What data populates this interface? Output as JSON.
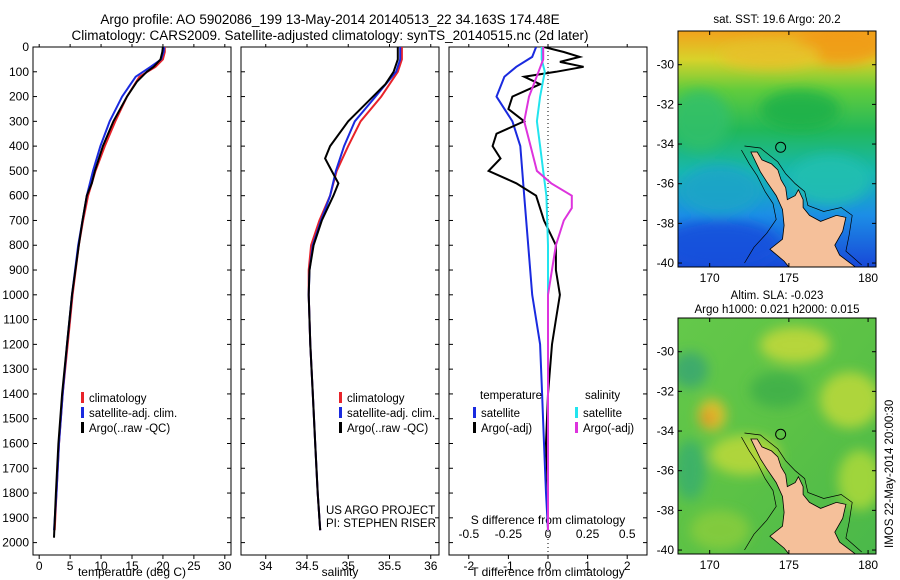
{
  "header": {
    "title_line1": "Argo profile: AO 5902086_199 13-May-2014 20140513_22 34.163S 174.48E",
    "title_line2": "Climatology: CARS2009. Satellite-adjusted climatology: synTS_20140515.nc (2d later)"
  },
  "colors": {
    "climatology": "#e8232a",
    "satellite": "#1a2adf",
    "argo": "#000000",
    "satellite_s": "#22e4ee",
    "argo_s": "#dd33dd"
  },
  "chart_data": [
    {
      "type": "line",
      "name": "temperature",
      "xlabel": "temperature (deg C)",
      "xlim": [
        -1,
        31
      ],
      "xticks": [
        "0",
        "5",
        "10",
        "15",
        "20",
        "25",
        "30"
      ],
      "ylim": [
        0,
        2050
      ],
      "yticks": [
        "0",
        "100",
        "200",
        "300",
        "400",
        "500",
        "600",
        "700",
        "800",
        "900",
        "1000",
        "1100",
        "1200",
        "1300",
        "1400",
        "1500",
        "1600",
        "1700",
        "1800",
        "1900",
        "2000"
      ],
      "legend": [
        "climatology",
        "satellite-adj. clim.",
        "Argo(..raw -QC)"
      ],
      "series": [
        {
          "name": "climatology",
          "color": "climatology",
          "depth": [
            0,
            20,
            50,
            80,
            120,
            200,
            300,
            400,
            500,
            600,
            700,
            800,
            900,
            1000,
            1200,
            1400,
            1600,
            1800,
            1950
          ],
          "values": [
            20.3,
            20.3,
            20.0,
            18.8,
            16.2,
            14.2,
            12.3,
            10.6,
            9.1,
            7.9,
            7.1,
            6.4,
            5.9,
            5.4,
            4.6,
            3.8,
            3.2,
            2.8,
            2.5
          ]
        },
        {
          "name": "satellite-adj. clim.",
          "color": "satellite",
          "depth": [
            0,
            20,
            50,
            80,
            120,
            200,
            300,
            400,
            500,
            600,
            700,
            800,
            900,
            1000,
            1200,
            1400,
            1600,
            1800,
            1950
          ],
          "values": [
            20.2,
            20.1,
            19.7,
            18.0,
            15.6,
            13.4,
            11.4,
            9.9,
            8.7,
            7.7,
            7.0,
            6.3,
            5.8,
            5.3,
            4.5,
            3.8,
            3.2,
            2.8,
            2.4
          ]
        },
        {
          "name": "Argo(..raw -QC)",
          "color": "argo",
          "depth": [
            0,
            20,
            50,
            80,
            100,
            140,
            200,
            300,
            400,
            500,
            550,
            600,
            700,
            800,
            1000,
            1200,
            1400,
            1600,
            1800,
            1980
          ],
          "values": [
            20.0,
            19.9,
            19.6,
            18.5,
            17.4,
            15.8,
            14.2,
            12.0,
            10.3,
            9.0,
            8.5,
            7.7,
            7.0,
            6.4,
            5.3,
            4.5,
            3.7,
            3.1,
            2.7,
            2.4
          ]
        }
      ]
    },
    {
      "type": "line",
      "name": "salinity",
      "xlabel": "salinity",
      "xlim": [
        33.7,
        36.1
      ],
      "xticks": [
        "34",
        "34.5",
        "35",
        "35.5",
        "36"
      ],
      "ylim": [
        0,
        2050
      ],
      "legend": [
        "climatology",
        "satellite-adj. clim.",
        "Argo(..raw -QC)"
      ],
      "annotation_lines": [
        "US ARGO PROJECT",
        "PI: STEPHEN RISER"
      ],
      "series": [
        {
          "name": "climatology",
          "color": "climatology",
          "depth": [
            0,
            50,
            100,
            200,
            300,
            400,
            500,
            600,
            700,
            800,
            900,
            1000,
            1200,
            1400,
            1600,
            1800,
            1950
          ],
          "values": [
            35.65,
            35.65,
            35.6,
            35.4,
            35.15,
            35.0,
            34.86,
            34.78,
            34.65,
            34.55,
            34.52,
            34.52,
            34.54,
            34.57,
            34.6,
            34.63,
            34.66
          ]
        },
        {
          "name": "satellite-adj. clim.",
          "color": "satellite",
          "depth": [
            0,
            50,
            100,
            200,
            300,
            400,
            500,
            600,
            700,
            800,
            900,
            1000,
            1200,
            1400,
            1600,
            1800,
            1950
          ],
          "values": [
            35.63,
            35.63,
            35.58,
            35.33,
            35.08,
            34.95,
            34.85,
            34.78,
            34.67,
            34.57,
            34.53,
            34.52,
            34.54,
            34.57,
            34.6,
            34.63,
            34.66
          ]
        },
        {
          "name": "Argo(..raw -QC)",
          "color": "argo",
          "depth": [
            0,
            50,
            100,
            150,
            200,
            300,
            400,
            450,
            500,
            550,
            600,
            650,
            700,
            800,
            900,
            1000,
            1200,
            1400,
            1600,
            1800,
            1950
          ],
          "values": [
            35.6,
            35.6,
            35.55,
            35.45,
            35.3,
            35.0,
            34.78,
            34.72,
            34.8,
            34.88,
            34.82,
            34.75,
            34.68,
            34.58,
            34.53,
            34.52,
            34.54,
            34.57,
            34.6,
            34.63,
            34.66
          ]
        }
      ]
    },
    {
      "type": "line",
      "name": "difference",
      "xlabel": "T difference from climatology",
      "xlabel_top": "S difference from climatology",
      "xlim": [
        -2.5,
        2.5
      ],
      "xticks": [
        "-2",
        "-1",
        "0",
        "1",
        "2"
      ],
      "xticks_top": [
        "-0.5",
        "-0.25",
        "0",
        "0.25",
        "0.5"
      ],
      "ylim": [
        0,
        2050
      ],
      "legend_titles": [
        "temperature",
        "salinity"
      ],
      "legend": [
        "satellite",
        "Argo(-adj)",
        "satellite",
        "Argo(-adj)"
      ],
      "series": [
        {
          "name": "satellite",
          "quantity": "temperature",
          "color": "satellite",
          "depth": [
            0,
            40,
            80,
            120,
            200,
            300,
            400,
            600,
            800,
            1000,
            1200,
            1400,
            1600,
            1800,
            1950
          ],
          "values": [
            -0.3,
            -0.4,
            -0.8,
            -1.1,
            -1.3,
            -0.9,
            -0.7,
            -0.6,
            -0.5,
            -0.4,
            -0.2,
            -0.15,
            -0.1,
            -0.05,
            0.0
          ]
        },
        {
          "name": "Argo(-adj)",
          "quantity": "temperature",
          "color": "argo",
          "depth": [
            0,
            20,
            40,
            60,
            80,
            100,
            120,
            150,
            200,
            250,
            300,
            350,
            400,
            450,
            500,
            550,
            600,
            700,
            800,
            900,
            1000,
            1100,
            1200,
            1400,
            1600,
            1800,
            1950
          ],
          "values": [
            -0.1,
            0.4,
            0.8,
            0.3,
            0.9,
            0.2,
            -0.6,
            -0.2,
            -0.9,
            -1.0,
            -0.6,
            -1.3,
            -1.4,
            -1.2,
            -1.5,
            -0.8,
            -0.3,
            -0.1,
            0.2,
            0.2,
            0.3,
            0.2,
            0.1,
            0.0,
            -0.05,
            0.0,
            0.0
          ]
        },
        {
          "name": "satellite",
          "quantity": "salinity",
          "color": "satellite_s",
          "depth": [
            0,
            50,
            100,
            200,
            300,
            400,
            500,
            600,
            800,
            1000,
            1200,
            1400,
            1600,
            1800,
            1950
          ],
          "values": [
            -0.04,
            -0.04,
            -0.02,
            -0.05,
            -0.07,
            -0.05,
            -0.03,
            -0.01,
            0.0,
            0.0,
            0.0,
            0.0,
            0.0,
            0.0,
            0.0
          ]
        },
        {
          "name": "Argo(-adj)",
          "quantity": "salinity",
          "color": "argo_s",
          "depth": [
            0,
            50,
            100,
            200,
            300,
            400,
            500,
            550,
            600,
            650,
            700,
            800,
            1000,
            1200,
            1400,
            1600,
            1800,
            1950
          ],
          "values": [
            -0.03,
            -0.03,
            -0.06,
            -0.12,
            -0.15,
            -0.11,
            -0.07,
            0.02,
            0.15,
            0.15,
            0.1,
            0.05,
            0.0,
            0.0,
            0.0,
            0.0,
            0.0,
            0.0
          ]
        }
      ]
    },
    {
      "type": "heatmap",
      "name": "sst-map",
      "title": "sat. SST: 19.6 Argo: 20.2",
      "xticks": [
        "170",
        "175",
        "180"
      ],
      "yticks": [
        "-30",
        "-32",
        "-34",
        "-36",
        "-38",
        "-40"
      ],
      "xlim": [
        168,
        180.5
      ],
      "ylim": [
        -40.2,
        -28.3
      ],
      "float_position": {
        "lon": 174.48,
        "lat": -34.163
      }
    },
    {
      "type": "heatmap",
      "name": "sla-map",
      "title_line1": "Altim. SLA: -0.023",
      "title_line2": "Argo h1000: 0.021 h2000: 0.015",
      "xticks": [
        "170",
        "175",
        "180"
      ],
      "yticks": [
        "-30",
        "-32",
        "-34",
        "-36",
        "-38",
        "-40"
      ],
      "xlim": [
        168,
        180.5
      ],
      "ylim": [
        -40.2,
        -28.3
      ],
      "float_position": {
        "lon": 174.48,
        "lat": -34.163
      }
    }
  ],
  "credit": "IMOS 22-May-2014 20:00:30"
}
